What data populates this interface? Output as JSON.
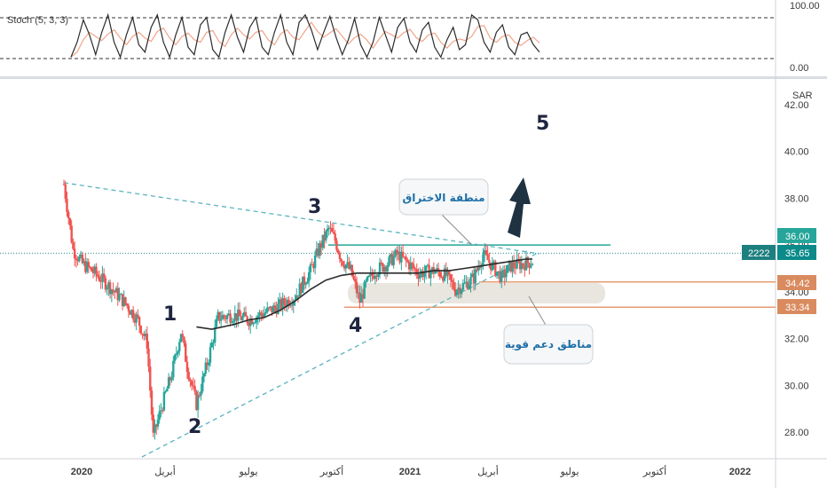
{
  "colors": {
    "up": "#26a69a",
    "down": "#ef5350",
    "ma": "#2b2b2b",
    "dashed": "#5ab4c0",
    "resistance": "#26a69a",
    "support": "#e59b73",
    "badge_current": "#0b8a8a",
    "badge_support": "#d98b5f",
    "badge_ticker": "#1e7f7f",
    "arrow": "#1f3242",
    "note_text": "#1e6fa8"
  },
  "stoch": {
    "label": "Stoch (5, 3, 3)",
    "upper": "100.00",
    "lower": "0.00"
  },
  "axis": {
    "currency": "SAR"
  },
  "badges": {
    "ticker": "2222",
    "current": "35.65",
    "resistance": "36.00",
    "support_high": "34.42",
    "support_low": "33.34"
  },
  "annotations": {
    "wave1": "1",
    "wave2": "2",
    "wave3": "3",
    "wave4": "4",
    "wave5": "5",
    "breakout": "منطقة الاختراق",
    "support": "مناطق دعم قوية"
  },
  "chart_data": {
    "type": "candlestick",
    "x_labels": [
      "2020",
      "أبريل",
      "يوليو",
      "أكتوبر",
      "2021",
      "أبريل",
      "يوليو",
      "أكتوبر",
      "2022"
    ],
    "y_ticks": [
      "42.00",
      "40.00",
      "38.00",
      "36.00",
      "34.00",
      "32.00",
      "30.00",
      "28.00"
    ],
    "ylim": [
      27,
      43
    ],
    "price_path": [
      [
        0,
        38.6
      ],
      [
        3,
        35.8
      ],
      [
        6,
        35.2
      ],
      [
        10,
        34.8
      ],
      [
        15,
        34.2
      ],
      [
        20,
        33.5
      ],
      [
        24,
        32.8
      ],
      [
        27,
        31.8
      ],
      [
        29,
        27.8
      ],
      [
        32,
        29.2
      ],
      [
        35,
        30.5
      ],
      [
        38,
        32.3
      ],
      [
        40,
        30.8
      ],
      [
        43,
        29.2
      ],
      [
        47,
        31.2
      ],
      [
        50,
        32.9
      ],
      [
        55,
        33.0
      ],
      [
        60,
        32.8
      ],
      [
        65,
        33.1
      ],
      [
        70,
        33.4
      ],
      [
        75,
        33.8
      ],
      [
        80,
        34.9
      ],
      [
        83,
        35.9
      ],
      [
        86,
        36.7
      ],
      [
        88,
        36.2
      ],
      [
        90,
        35.4
      ],
      [
        93,
        34.9
      ],
      [
        96,
        33.6
      ],
      [
        98,
        34.3
      ],
      [
        101,
        34.9
      ],
      [
        105,
        35.2
      ],
      [
        108,
        35.6
      ],
      [
        111,
        35.3
      ],
      [
        115,
        34.8
      ],
      [
        120,
        34.9
      ],
      [
        124,
        34.7
      ],
      [
        127,
        34.1
      ],
      [
        130,
        34.3
      ],
      [
        133,
        34.6
      ],
      [
        136,
        35.6
      ],
      [
        139,
        35.1
      ],
      [
        142,
        34.6
      ],
      [
        145,
        35.1
      ],
      [
        149,
        35.2
      ],
      [
        152,
        35.3
      ]
    ],
    "moving_average": [
      [
        43,
        32.5
      ],
      [
        48,
        32.4
      ],
      [
        55,
        32.6
      ],
      [
        60,
        32.8
      ],
      [
        65,
        32.9
      ],
      [
        70,
        33.2
      ],
      [
        75,
        33.6
      ],
      [
        80,
        34.1
      ],
      [
        85,
        34.5
      ],
      [
        90,
        34.7
      ],
      [
        95,
        34.8
      ],
      [
        100,
        34.8
      ],
      [
        108,
        34.8
      ],
      [
        115,
        34.8
      ],
      [
        120,
        34.9
      ],
      [
        125,
        34.9
      ],
      [
        130,
        35.0
      ],
      [
        135,
        35.1
      ],
      [
        140,
        35.2
      ],
      [
        145,
        35.3
      ],
      [
        150,
        35.4
      ],
      [
        152,
        35.4
      ]
    ],
    "stochastic": [
      [
        0,
        10
      ],
      [
        2,
        40
      ],
      [
        4,
        85
      ],
      [
        6,
        55
      ],
      [
        8,
        15
      ],
      [
        10,
        60
      ],
      [
        12,
        95
      ],
      [
        14,
        40
      ],
      [
        16,
        10
      ],
      [
        18,
        55
      ],
      [
        20,
        90
      ],
      [
        22,
        35
      ],
      [
        24,
        20
      ],
      [
        26,
        70
      ],
      [
        28,
        95
      ],
      [
        30,
        40
      ],
      [
        32,
        10
      ],
      [
        34,
        55
      ],
      [
        36,
        90
      ],
      [
        38,
        30
      ],
      [
        40,
        15
      ],
      [
        42,
        75
      ],
      [
        44,
        90
      ],
      [
        46,
        25
      ],
      [
        48,
        10
      ],
      [
        50,
        60
      ],
      [
        52,
        95
      ],
      [
        54,
        50
      ],
      [
        56,
        20
      ],
      [
        58,
        70
      ],
      [
        60,
        90
      ],
      [
        62,
        30
      ],
      [
        64,
        15
      ],
      [
        66,
        60
      ],
      [
        68,
        95
      ],
      [
        70,
        40
      ],
      [
        72,
        15
      ],
      [
        74,
        80
      ],
      [
        76,
        95
      ],
      [
        78,
        65
      ],
      [
        80,
        25
      ],
      [
        82,
        60
      ],
      [
        84,
        92
      ],
      [
        86,
        50
      ],
      [
        88,
        15
      ],
      [
        90,
        45
      ],
      [
        92,
        88
      ],
      [
        94,
        35
      ],
      [
        96,
        10
      ],
      [
        98,
        40
      ],
      [
        100,
        90
      ],
      [
        102,
        55
      ],
      [
        104,
        20
      ],
      [
        106,
        70
      ],
      [
        108,
        88
      ],
      [
        110,
        40
      ],
      [
        112,
        20
      ],
      [
        114,
        65
      ],
      [
        116,
        80
      ],
      [
        118,
        30
      ],
      [
        120,
        10
      ],
      [
        122,
        45
      ],
      [
        124,
        70
      ],
      [
        126,
        25
      ],
      [
        128,
        35
      ],
      [
        130,
        95
      ],
      [
        132,
        85
      ],
      [
        134,
        40
      ],
      [
        136,
        20
      ],
      [
        138,
        60
      ],
      [
        140,
        75
      ],
      [
        142,
        30
      ],
      [
        144,
        15
      ],
      [
        146,
        55
      ],
      [
        148,
        60
      ],
      [
        150,
        35
      ],
      [
        152,
        20
      ]
    ],
    "levels": {
      "current": 35.65,
      "resistance": 36.0,
      "support_high": 34.42,
      "support_low": 33.34
    }
  }
}
